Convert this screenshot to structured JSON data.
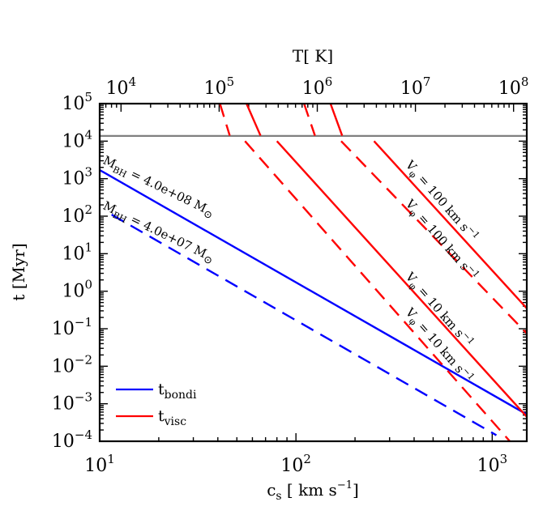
{
  "chart_data": {
    "type": "line",
    "x_axis": {
      "label": "c",
      "label_sub": "s",
      "label_unit": " [ km s",
      "label_unit_sup": "−1",
      "label_close": "]",
      "scale": "log",
      "lim": [
        10,
        1500
      ],
      "ticks": [
        {
          "base": "10",
          "exp": "1",
          "value": 10
        },
        {
          "base": "10",
          "exp": "2",
          "value": 100
        },
        {
          "base": "10",
          "exp": "3",
          "value": 1000
        }
      ]
    },
    "y_axis": {
      "label": "t [Myr]",
      "scale": "log",
      "lim": [
        0.0001,
        100000
      ],
      "ticks": [
        {
          "base": "10",
          "exp": "5",
          "value": 100000
        },
        {
          "base": "10",
          "exp": "4",
          "value": 10000
        },
        {
          "base": "10",
          "exp": "3",
          "value": 1000
        },
        {
          "base": "10",
          "exp": "2",
          "value": 100
        },
        {
          "base": "10",
          "exp": "1",
          "value": 10
        },
        {
          "base": "10",
          "exp": "0",
          "value": 1
        },
        {
          "base": "10",
          "exp": "−1",
          "value": 0.1
        },
        {
          "base": "10",
          "exp": "−2",
          "value": 0.01
        },
        {
          "base": "10",
          "exp": "−3",
          "value": 0.001
        },
        {
          "base": "10",
          "exp": "−4",
          "value": 0.0001
        }
      ]
    },
    "top_axis": {
      "label": "T[ K]",
      "scale": "log",
      "note": "T = 60.6 * c_s^2 (c_s in km/s)",
      "ticks": [
        {
          "base": "10",
          "exp": "4",
          "value": 10000
        },
        {
          "base": "10",
          "exp": "5",
          "value": 100000
        },
        {
          "base": "10",
          "exp": "6",
          "value": 1000000
        },
        {
          "base": "10",
          "exp": "7",
          "value": 10000000
        },
        {
          "base": "10",
          "exp": "8",
          "value": 100000000
        }
      ]
    },
    "series": [
      {
        "name": "hubble-time",
        "color": "#808080",
        "style": "solid",
        "x": [
          10,
          1500
        ],
        "y": [
          13800,
          13800
        ]
      },
      {
        "name": "tbondi-4e8",
        "color": "#0000ff",
        "style": "solid",
        "x": [
          10,
          1500
        ],
        "y": [
          1700,
          0.00052
        ]
      },
      {
        "name": "tbondi-4e7",
        "color": "#0000ff",
        "style": "dashed",
        "x": [
          11.5,
          1050
        ],
        "y": [
          110,
          0.000145
        ]
      },
      {
        "name": "tvisc-100-solid",
        "color": "#ff0000",
        "style": "solid",
        "x": [
          250,
          1500
        ],
        "y": [
          10000,
          0.35
        ]
      },
      {
        "name": "tvisc-100-dashed",
        "color": "#ff0000",
        "style": "dashed",
        "x": [
          170,
          1500
        ],
        "y": [
          10000,
          0.075
        ]
      },
      {
        "name": "tvisc-10-solid",
        "color": "#ff0000",
        "style": "solid",
        "x": [
          80,
          1500
        ],
        "y": [
          10000,
          0.00045
        ]
      },
      {
        "name": "tvisc-10-dashed",
        "color": "#ff0000",
        "style": "dashed",
        "x": [
          55,
          1230
        ],
        "y": [
          10000,
          0.0001
        ]
      },
      {
        "name": "tvisc-top-1",
        "color": "#ff0000",
        "style": "solid",
        "x": [
          56,
          66
        ],
        "y": [
          100000,
          14000
        ]
      },
      {
        "name": "tvisc-top-2",
        "color": "#ff0000",
        "style": "dashed",
        "x": [
          41,
          46
        ],
        "y": [
          100000,
          14000
        ]
      },
      {
        "name": "tvisc-top-3",
        "color": "#ff0000",
        "style": "dashed",
        "x": [
          110,
          125
        ],
        "y": [
          100000,
          14000
        ]
      },
      {
        "name": "tvisc-top-4",
        "color": "#ff0000",
        "style": "solid",
        "x": [
          150,
          172
        ],
        "y": [
          100000,
          14000
        ]
      }
    ],
    "annotations": [
      {
        "name": "mbh-4e8-label",
        "color": "#000000",
        "x": 10.3,
        "y": 2600,
        "angle": 26,
        "pre": "M",
        "sub": "BH",
        "post": " = 4.0e+08 M",
        "sym": "⊙"
      },
      {
        "name": "mbh-4e7-label",
        "color": "#000000",
        "x": 10.3,
        "y": 160,
        "angle": 26,
        "pre": "M",
        "sub": "BH",
        "post": " = 4.0e+07 M",
        "sym": "⊙"
      },
      {
        "name": "vphi-100-upper-label",
        "color": "#000000",
        "x": 360,
        "y": 2300,
        "angle": 49,
        "pre": "V",
        "sub": "φ",
        "post": " = 100 km s",
        "sup": "−1"
      },
      {
        "name": "vphi-100-lower-label",
        "color": "#000000",
        "x": 360,
        "y": 210,
        "angle": 49,
        "pre": "V",
        "sub": "φ",
        "post": " = 100 km s",
        "sup": "−1"
      },
      {
        "name": "vphi-10-upper-label",
        "color": "#000000",
        "x": 360,
        "y": 2.4,
        "angle": 49,
        "pre": "V",
        "sub": "φ",
        "post": " = 10 km s",
        "sup": "−1"
      },
      {
        "name": "vphi-10-lower-label",
        "color": "#000000",
        "x": 360,
        "y": 0.27,
        "angle": 49,
        "pre": "V",
        "sub": "φ",
        "post": " = 10 km s",
        "sup": "−1"
      }
    ],
    "legend": {
      "position": "bottom-left",
      "entries": [
        {
          "name": "legend-tbondi",
          "color": "#0000ff",
          "label": "t",
          "sub": "bondi"
        },
        {
          "name": "legend-tvisc",
          "color": "#ff0000",
          "label": "t",
          "sub": "visc"
        }
      ]
    }
  }
}
